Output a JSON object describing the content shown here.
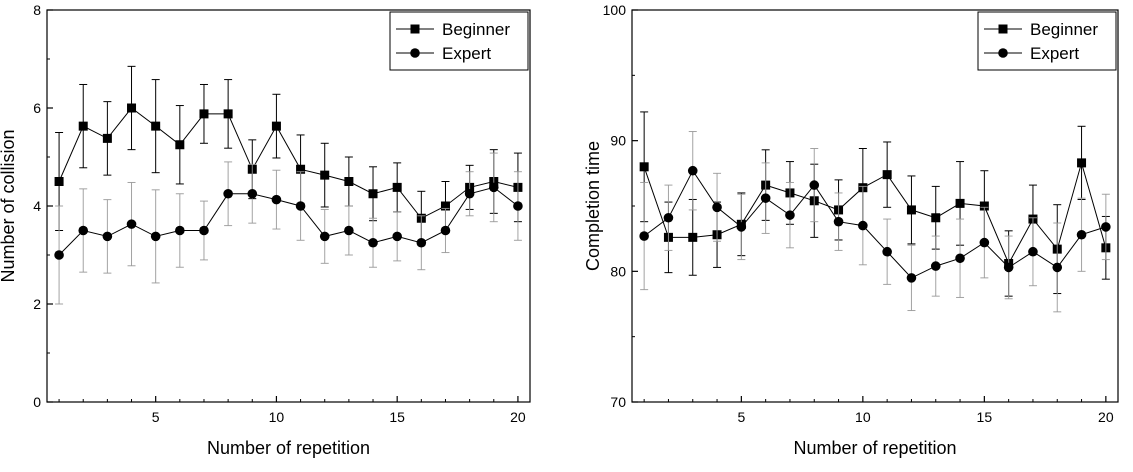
{
  "chart_data": [
    {
      "type": "line",
      "title": "",
      "xlabel": "Number of repetition",
      "ylabel": "Number of collision",
      "xlim": [
        0.5,
        20.5
      ],
      "ylim": [
        0,
        8
      ],
      "xticks": [
        5,
        10,
        15,
        20
      ],
      "yticks": [
        0,
        2,
        4,
        6,
        8
      ],
      "x": [
        1,
        2,
        3,
        4,
        5,
        6,
        7,
        8,
        9,
        10,
        11,
        12,
        13,
        14,
        15,
        16,
        17,
        18,
        19,
        20
      ],
      "legend_position": "top-right",
      "grid": false,
      "series": [
        {
          "name": "Beginner",
          "marker": "square",
          "values": [
            4.5,
            5.63,
            5.38,
            6.0,
            5.63,
            5.25,
            5.88,
            5.88,
            4.75,
            5.63,
            4.75,
            4.63,
            4.5,
            4.25,
            4.38,
            3.75,
            4.0,
            4.38,
            4.5,
            4.38
          ],
          "errors": [
            1.0,
            0.85,
            0.75,
            0.85,
            0.95,
            0.8,
            0.6,
            0.7,
            0.6,
            0.65,
            0.7,
            0.65,
            0.5,
            0.55,
            0.5,
            0.55,
            0.5,
            0.45,
            0.65,
            0.7
          ]
        },
        {
          "name": "Expert",
          "marker": "circle",
          "values": [
            3.0,
            3.5,
            3.38,
            3.63,
            3.38,
            3.5,
            3.5,
            4.25,
            4.25,
            4.13,
            4.0,
            3.38,
            3.5,
            3.25,
            3.38,
            3.25,
            3.5,
            4.25,
            4.38,
            4.0
          ],
          "errors": [
            1.0,
            0.85,
            0.75,
            0.85,
            0.95,
            0.75,
            0.6,
            0.65,
            0.6,
            0.6,
            0.7,
            0.55,
            0.5,
            0.5,
            0.5,
            0.55,
            0.45,
            0.45,
            0.7,
            0.7
          ]
        }
      ]
    },
    {
      "type": "line",
      "title": "",
      "xlabel": "Number of repetition",
      "ylabel": "Completion time",
      "xlim": [
        0.5,
        20.5
      ],
      "ylim": [
        70,
        100
      ],
      "xticks": [
        5,
        10,
        15,
        20
      ],
      "yticks": [
        70,
        80,
        90,
        100
      ],
      "x": [
        1,
        2,
        3,
        4,
        5,
        6,
        7,
        8,
        9,
        10,
        11,
        12,
        13,
        14,
        15,
        16,
        17,
        18,
        19,
        20
      ],
      "legend_position": "top-right",
      "grid": false,
      "series": [
        {
          "name": "Beginner",
          "marker": "square",
          "values": [
            88.0,
            82.6,
            82.6,
            82.8,
            83.6,
            86.6,
            86.0,
            85.4,
            84.7,
            86.4,
            87.4,
            84.7,
            84.1,
            85.2,
            85.0,
            80.6,
            84.0,
            81.7,
            88.3,
            81.8
          ],
          "errors": [
            4.2,
            2.7,
            2.9,
            2.5,
            2.4,
            2.7,
            2.4,
            2.8,
            2.3,
            3.0,
            2.5,
            2.6,
            2.4,
            3.2,
            2.7,
            2.5,
            2.6,
            3.4,
            2.8,
            2.4
          ]
        },
        {
          "name": "Expert",
          "marker": "circle",
          "values": [
            82.7,
            84.1,
            87.7,
            84.9,
            83.4,
            85.6,
            84.3,
            86.6,
            83.8,
            83.5,
            81.5,
            79.5,
            80.4,
            81.0,
            82.2,
            80.3,
            81.5,
            80.3,
            82.8,
            83.4
          ],
          "errors": [
            4.1,
            2.5,
            3.0,
            2.6,
            2.5,
            2.7,
            2.5,
            2.8,
            2.2,
            3.0,
            2.5,
            2.5,
            2.3,
            3.0,
            2.7,
            2.4,
            2.6,
            3.4,
            2.8,
            2.5
          ]
        }
      ]
    }
  ]
}
